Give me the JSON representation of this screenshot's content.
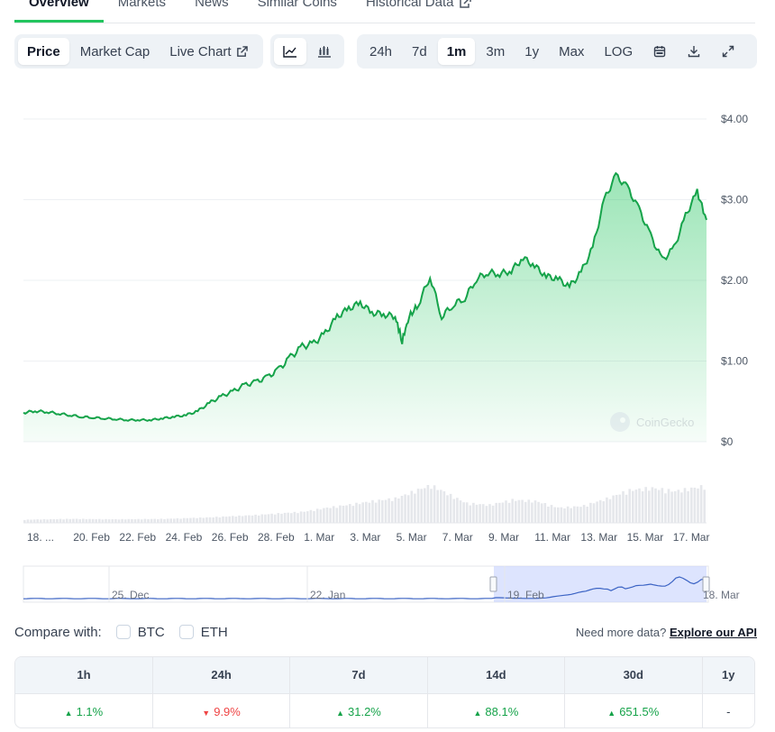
{
  "tabs": [
    {
      "label": "Overview",
      "active": true
    },
    {
      "label": "Markets"
    },
    {
      "label": "News"
    },
    {
      "label": "Similar Coins"
    },
    {
      "label": "Historical Data",
      "icon": "external-link-icon"
    }
  ],
  "toolbar": {
    "views": [
      {
        "label": "Price",
        "active": true
      },
      {
        "label": "Market Cap"
      },
      {
        "label": "Live Chart",
        "icon": "external-link-icon"
      }
    ],
    "chart_types": [
      {
        "icon": "line-chart-icon",
        "active": true
      },
      {
        "icon": "candlestick-chart-icon"
      }
    ],
    "ranges": [
      {
        "label": "24h"
      },
      {
        "label": "7d"
      },
      {
        "label": "1m",
        "active": true
      },
      {
        "label": "3m"
      },
      {
        "label": "1y"
      },
      {
        "label": "Max"
      },
      {
        "label": "LOG"
      }
    ],
    "actions": [
      "calendar-icon",
      "download-icon",
      "fullscreen-icon"
    ]
  },
  "chart_data": {
    "type": "area",
    "watermark": "CoinGecko",
    "y_ticks": [
      "$4.00",
      "$3.00",
      "$2.00",
      "$1.00",
      "$0"
    ],
    "ylim": [
      0,
      4
    ],
    "x_ticks": [
      "18. ...",
      "20. Feb",
      "22. Feb",
      "24. Feb",
      "26. Feb",
      "28. Feb",
      "1. Mar",
      "3. Mar",
      "5. Mar",
      "7. Mar",
      "9. Mar",
      "11. Mar",
      "13. Mar",
      "15. Mar",
      "17. Mar"
    ],
    "line_color": "#16a34a",
    "fill_color": "#22c55e",
    "series": [
      {
        "values": [
          [
            0,
            0.36
          ],
          [
            0.5,
            0.38
          ],
          [
            1,
            0.37
          ],
          [
            1.5,
            0.35
          ],
          [
            2,
            0.33
          ],
          [
            2.5,
            0.31
          ],
          [
            3,
            0.3
          ],
          [
            3.5,
            0.29
          ],
          [
            4,
            0.28
          ],
          [
            4.5,
            0.27
          ],
          [
            5,
            0.27
          ],
          [
            5.5,
            0.27
          ],
          [
            6,
            0.29
          ],
          [
            6.5,
            0.31
          ],
          [
            7,
            0.33
          ],
          [
            7.5,
            0.38
          ],
          [
            8,
            0.48
          ],
          [
            8.5,
            0.56
          ],
          [
            9,
            0.62
          ],
          [
            9.5,
            0.7
          ],
          [
            10,
            0.74
          ],
          [
            10.5,
            0.8
          ],
          [
            11,
            0.9
          ],
          [
            11.5,
            1.05
          ],
          [
            12,
            1.18
          ],
          [
            12.5,
            1.22
          ],
          [
            13,
            1.35
          ],
          [
            13.5,
            1.55
          ],
          [
            14,
            1.65
          ],
          [
            14.5,
            1.72
          ],
          [
            15,
            1.6
          ],
          [
            15.5,
            1.58
          ],
          [
            16,
            1.55
          ],
          [
            16.3,
            1.25
          ],
          [
            16.6,
            1.55
          ],
          [
            17,
            1.7
          ],
          [
            17.5,
            2.05
          ],
          [
            18,
            1.55
          ],
          [
            18.5,
            1.7
          ],
          [
            19,
            1.78
          ],
          [
            19.5,
            2.02
          ],
          [
            20,
            2.1
          ],
          [
            20.5,
            2.08
          ],
          [
            21,
            2.12
          ],
          [
            21.5,
            2.28
          ],
          [
            22,
            2.18
          ],
          [
            22.5,
            2.05
          ],
          [
            23,
            2.02
          ],
          [
            23.5,
            1.92
          ],
          [
            24,
            2.1
          ],
          [
            24.5,
            2.4
          ],
          [
            25,
            3.0
          ],
          [
            25.5,
            3.3
          ],
          [
            26,
            3.15
          ],
          [
            26.5,
            2.88
          ],
          [
            27,
            2.55
          ],
          [
            27.5,
            2.25
          ],
          [
            28,
            2.4
          ],
          [
            28.5,
            2.8
          ],
          [
            29,
            3.1
          ],
          [
            29.4,
            2.75
          ]
        ]
      }
    ],
    "volume": [
      [
        0,
        0.08
      ],
      [
        2,
        0.1
      ],
      [
        4,
        0.09
      ],
      [
        6,
        0.1
      ],
      [
        8,
        0.14
      ],
      [
        10,
        0.2
      ],
      [
        12,
        0.28
      ],
      [
        13,
        0.38
      ],
      [
        14,
        0.46
      ],
      [
        15,
        0.55
      ],
      [
        16,
        0.62
      ],
      [
        17,
        0.85
      ],
      [
        17.5,
        0.95
      ],
      [
        18,
        0.8
      ],
      [
        19,
        0.5
      ],
      [
        20,
        0.45
      ],
      [
        21,
        0.58
      ],
      [
        22,
        0.55
      ],
      [
        23,
        0.38
      ],
      [
        24,
        0.42
      ],
      [
        25,
        0.6
      ],
      [
        26,
        0.82
      ],
      [
        27,
        0.88
      ],
      [
        28,
        0.8
      ],
      [
        29,
        0.9
      ],
      [
        29.4,
        0.95
      ]
    ],
    "navigator": {
      "labels": [
        "25. Dec",
        "22. Jan",
        "19. Feb",
        "18. Mar"
      ]
    }
  },
  "compare": {
    "label": "Compare with:",
    "options": [
      "BTC",
      "ETH"
    ],
    "api_text": "Need more data?",
    "api_link": "Explore our API"
  },
  "performance": {
    "headers": [
      "1h",
      "24h",
      "7d",
      "14d",
      "30d",
      "1y"
    ],
    "values": [
      {
        "text": "1.1%",
        "dir": "up"
      },
      {
        "text": "9.9%",
        "dir": "down"
      },
      {
        "text": "31.2%",
        "dir": "up"
      },
      {
        "text": "88.1%",
        "dir": "up"
      },
      {
        "text": "651.5%",
        "dir": "up"
      },
      {
        "text": "-",
        "dir": "none"
      }
    ]
  }
}
